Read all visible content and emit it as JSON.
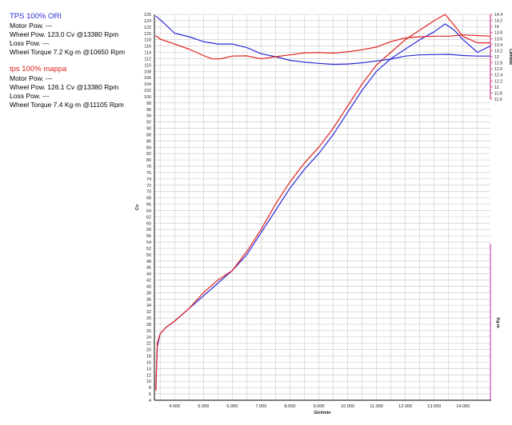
{
  "legend": {
    "ori": {
      "title": "TPS 100% ORI",
      "color": "#2a2ad8",
      "motor_pow": "Motor Pow. ---",
      "wheel_pow": "Wheel Pow.   123.0 Cv   @13380 Rpm",
      "loss_pow": "Loss Pow. ---",
      "wheel_torque": "Wheel Torque   7.2 Kg·m   @10650 Rpm"
    },
    "mappa": {
      "title": "tps 100% mappa",
      "color": "#e02020",
      "motor_pow": "Motor Pow. ---",
      "wheel_pow": "Wheel Pow.   126.1 Cv   @13380 Rpm",
      "loss_pow": "Loss Pow. ---",
      "wheel_torque": "Wheel Torque   7.4 Kg·m   @11105 Rpm"
    }
  },
  "chart_data": {
    "type": "line",
    "xlabel": "Giri/min",
    "ylabel_left": "Cv",
    "ylabel_right_top": "Lambda",
    "ylabel_right_bottom": "Kg·m",
    "xlim": [
      3300,
      14950
    ],
    "x_ticks": [
      "4.000",
      "5.000",
      "6.000",
      "7.000",
      "8.000",
      "9.000",
      "10.000",
      "11.000",
      "12.000",
      "13.000",
      "14.000"
    ],
    "x_tick_values": [
      4000,
      5000,
      6000,
      7000,
      8000,
      9000,
      10000,
      11000,
      12000,
      13000,
      14000
    ],
    "ylim_left": [
      4,
      126
    ],
    "y_ticks_left": [
      4,
      6,
      8,
      10,
      12,
      14,
      16,
      18,
      20,
      22,
      24,
      26,
      28,
      30,
      32,
      34,
      36,
      38,
      40,
      42,
      44,
      46,
      48,
      50,
      52,
      54,
      56,
      58,
      60,
      62,
      64,
      66,
      68,
      70,
      72,
      74,
      76,
      78,
      80,
      82,
      84,
      86,
      88,
      90,
      92,
      94,
      96,
      98,
      100,
      102,
      104,
      106,
      108,
      110,
      112,
      114,
      116,
      118,
      120,
      122,
      124,
      126
    ],
    "ylim_right_lambda": [
      11.6,
      14.4
    ],
    "y_ticks_right_lambda": [
      "11.6",
      "11.8",
      "12",
      "12.2",
      "12.4",
      "12.6",
      "12.8",
      "13",
      "13.2",
      "13.4",
      "13.6",
      "13.8",
      "14",
      "14.2",
      "14.4"
    ],
    "series": [
      {
        "name": "TPS 100% ORI",
        "kind": "power",
        "color": "#2a2ad8",
        "x": [
          3350,
          3400,
          3500,
          3700,
          4000,
          4500,
          5000,
          5500,
          6000,
          6500,
          7000,
          7500,
          8000,
          8500,
          9000,
          9500,
          10000,
          10500,
          11000,
          11500,
          12000,
          12500,
          13000,
          13380,
          13700,
          14000,
          14500,
          14950
        ],
        "y": [
          8,
          21,
          25,
          27,
          29,
          33,
          37,
          41,
          45,
          50,
          57,
          64,
          71,
          77,
          82,
          88,
          95,
          102,
          108,
          112,
          115,
          118,
          120.5,
          123,
          121,
          118,
          114,
          116
        ]
      },
      {
        "name": "tps 100% mappa",
        "kind": "power",
        "color": "#e02020",
        "x": [
          3350,
          3400,
          3500,
          3700,
          4000,
          4500,
          5000,
          5500,
          6000,
          6500,
          7000,
          7500,
          8000,
          8500,
          9000,
          9500,
          10000,
          10500,
          11000,
          11500,
          12000,
          12500,
          13000,
          13380,
          13700,
          14000,
          14500,
          14950
        ],
        "y": [
          7,
          22,
          25,
          27,
          29,
          33,
          38,
          42,
          45,
          51,
          58,
          66,
          73,
          79,
          84,
          90,
          97,
          104,
          110,
          114,
          118,
          121,
          124,
          126,
          122.5,
          119,
          117,
          117
        ]
      },
      {
        "name": "TPS 100% ORI",
        "kind": "lambda",
        "color": "#2a2ad8",
        "x": [
          3350,
          3700,
          4000,
          4500,
          5000,
          5500,
          6000,
          6500,
          7000,
          7500,
          8000,
          8500,
          9000,
          9500,
          10000,
          10500,
          11000,
          11500,
          12000,
          12500,
          13000,
          13500,
          14000,
          14500,
          14950
        ],
        "y": [
          14.35,
          14.05,
          13.78,
          13.66,
          13.5,
          13.42,
          13.42,
          13.3,
          13.1,
          13,
          12.88,
          12.82,
          12.78,
          12.75,
          12.76,
          12.8,
          12.86,
          12.92,
          13.02,
          13.06,
          13.07,
          13.08,
          13.04,
          13.02,
          13.02
        ]
      },
      {
        "name": "tps 100% mappa",
        "kind": "lambda",
        "color": "#e02020",
        "x": [
          3350,
          3500,
          4000,
          4500,
          5000,
          5300,
          5600,
          6000,
          6500,
          7000,
          7500,
          8000,
          8500,
          9000,
          9500,
          10000,
          10500,
          11000,
          11500,
          12000,
          12500,
          13000,
          13500,
          14000,
          14500,
          14950
        ],
        "y": [
          13.7,
          13.58,
          13.42,
          13.25,
          13.04,
          12.93,
          12.93,
          13.02,
          13.03,
          12.93,
          13.0,
          13.06,
          13.13,
          13.14,
          13.12,
          13.16,
          13.23,
          13.32,
          13.5,
          13.62,
          13.66,
          13.68,
          13.68,
          13.72,
          13.7,
          13.68
        ]
      }
    ]
  }
}
